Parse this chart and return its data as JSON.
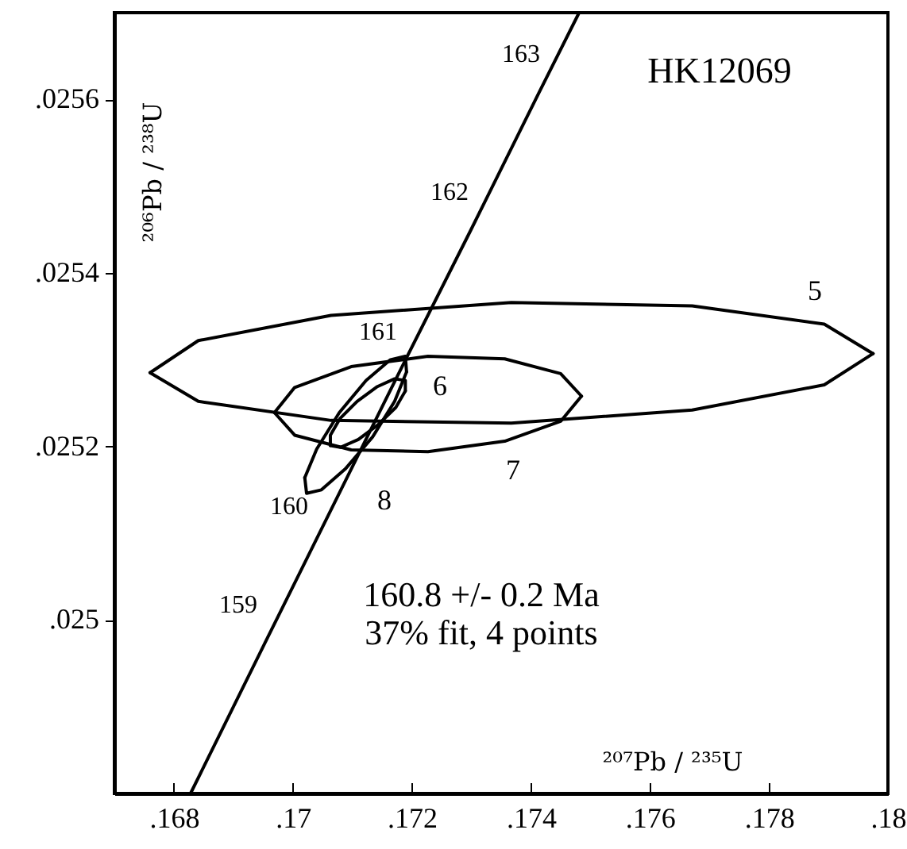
{
  "chart_data": {
    "type": "line",
    "title": "HK12069",
    "xlabel": "²⁰⁷Pb / ²³⁵U",
    "ylabel": "²⁰⁶Pb / ²³⁸U",
    "xlim": [
      0.167,
      0.18
    ],
    "ylim": [
      0.0248,
      0.0257
    ],
    "xticks": [
      {
        "value": 0.168,
        "label": ".168"
      },
      {
        "value": 0.17,
        "label": ".17"
      },
      {
        "value": 0.172,
        "label": ".172"
      },
      {
        "value": 0.174,
        "label": ".174"
      },
      {
        "value": 0.176,
        "label": ".176"
      },
      {
        "value": 0.178,
        "label": ".178"
      },
      {
        "value": 0.18,
        "label": ".18"
      }
    ],
    "yticks": [
      {
        "value": 0.025,
        "label": ".025"
      },
      {
        "value": 0.0252,
        "label": ".0252"
      },
      {
        "value": 0.0254,
        "label": ".0254"
      },
      {
        "value": 0.0256,
        "label": ".0256"
      }
    ],
    "series": [
      {
        "color": "#000000",
        "x": [
          0.16828,
          0.16952,
          0.17067,
          0.17182,
          0.17298,
          0.17413,
          0.17481
        ],
        "values": [
          0.0248,
          0.024972,
          0.025131,
          0.02529,
          0.025448,
          0.025607,
          0.0257
        ]
      },
      {
        "color": "#000000",
        "x": [
          0.1676,
          0.16841,
          0.17064,
          0.17367,
          0.17671,
          0.17893,
          0.17975
        ],
        "values": [
          0.025285,
          0.025252,
          0.02523,
          0.025227,
          0.025242,
          0.025271,
          0.025307
        ]
      },
      {
        "color": "#000000",
        "x": [
          0.1676,
          0.16841,
          0.17064,
          0.17367,
          0.17671,
          0.17893,
          0.17975
        ],
        "values": [
          0.025285,
          0.025322,
          0.025351,
          0.025366,
          0.025362,
          0.025341,
          0.025307
        ]
      },
      {
        "color": "#000000",
        "x": [
          0.17063,
          0.1708,
          0.1711,
          0.17143,
          0.17173,
          0.17189
        ],
        "values": [
          0.025201,
          0.025199,
          0.025208,
          0.025225,
          0.025245,
          0.025264
        ]
      },
      {
        "color": "#000000",
        "x": [
          0.17063,
          0.17063,
          0.17079,
          0.17108,
          0.17142,
          0.17171,
          0.17189,
          0.17189
        ],
        "values": [
          0.025201,
          0.025213,
          0.025232,
          0.025252,
          0.025269,
          0.025278,
          0.025276,
          0.025264
        ]
      },
      {
        "color": "#000000",
        "x": [
          0.16969,
          0.17003,
          0.17098,
          0.17227,
          0.17356,
          0.1745,
          0.17485
        ],
        "values": [
          0.025239,
          0.025213,
          0.025196,
          0.025194,
          0.025206,
          0.025229,
          0.025258
        ]
      },
      {
        "color": "#000000",
        "x": [
          0.16969,
          0.17003,
          0.17098,
          0.17227,
          0.17356,
          0.1745,
          0.17485
        ],
        "values": [
          0.025239,
          0.025268,
          0.025292,
          0.025304,
          0.025301,
          0.025284,
          0.025258
        ]
      },
      {
        "color": "#000000",
        "x": [
          0.1702,
          0.17023,
          0.17048,
          0.17088,
          0.17134,
          0.17171,
          0.17191
        ],
        "values": [
          0.025164,
          0.025146,
          0.02515,
          0.025174,
          0.025211,
          0.025252,
          0.025286
        ]
      },
      {
        "color": "#000000",
        "x": [
          0.1702,
          0.1704,
          0.17078,
          0.17123,
          0.17164,
          0.17189,
          0.17191
        ],
        "values": [
          0.025164,
          0.025197,
          0.025239,
          0.025276,
          0.0253,
          0.025304,
          0.025286
        ]
      }
    ],
    "annotations": [
      "159",
      "160",
      "161",
      "162",
      "163",
      "5",
      "6",
      "7",
      "8",
      "160.8 +/- 0.2 Ma",
      "37% fit, 4 points"
    ],
    "grid": false
  }
}
